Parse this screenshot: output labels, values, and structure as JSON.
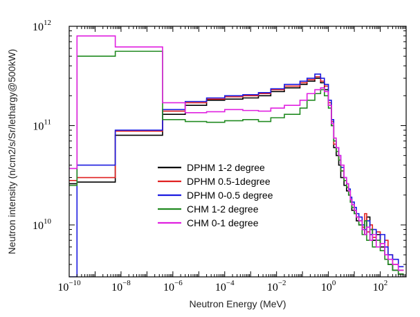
{
  "chart_data": {
    "type": "line",
    "step": true,
    "xscale": "log",
    "yscale": "log",
    "xlabel": "Neutron Energy (MeV)",
    "ylabel": "Neutron intensity (n/cm2/s/Sr/lethargy@500kW)",
    "xlim": [
      1e-10,
      1000
    ],
    "ylim": [
      3000000000.0,
      1000000000000.0
    ],
    "grid": false,
    "legend_position": "center",
    "x_ticks": [
      {
        "value": 1e-10,
        "base": "10",
        "exp": "−10"
      },
      {
        "value": 1e-08,
        "base": "10",
        "exp": "−8"
      },
      {
        "value": 1e-06,
        "base": "10",
        "exp": "−6"
      },
      {
        "value": 0.0001,
        "base": "10",
        "exp": "−4"
      },
      {
        "value": 0.01,
        "base": "10",
        "exp": "−2"
      },
      {
        "value": 1,
        "base": "10",
        "exp": "0"
      },
      {
        "value": 100,
        "base": "10",
        "exp": "2"
      }
    ],
    "y_ticks": [
      {
        "value": 10000000000.0,
        "base": "10",
        "exp": "10"
      },
      {
        "value": 100000000000.0,
        "base": "10",
        "exp": "11"
      },
      {
        "value": 1000000000000.0,
        "base": "10",
        "exp": "12"
      }
    ],
    "series": [
      {
        "name": "DPHM 1-2 degree",
        "color": "#000000",
        "x": [
          1e-10,
          2e-10,
          6e-09,
          4e-07,
          3e-06,
          2e-05,
          0.0001,
          0.0005,
          0.002,
          0.006,
          0.02,
          0.08,
          0.15,
          0.3,
          0.5,
          0.7,
          1,
          1.3,
          1.6,
          2,
          2.5,
          3,
          4,
          5,
          6,
          7,
          8,
          10,
          12,
          15,
          20,
          25,
          30,
          40,
          50,
          70,
          100,
          150,
          200,
          300,
          500
        ],
        "y": [
          26000000000.0,
          27000000000.0,
          80000000000.0,
          130000000000.0,
          160000000000.0,
          180000000000.0,
          185000000000.0,
          190000000000.0,
          200000000000.0,
          220000000000.0,
          240000000000.0,
          260000000000.0,
          280000000000.0,
          300000000000.0,
          270000000000.0,
          230000000000.0,
          160000000000.0,
          100000000000.0,
          60000000000.0,
          50000000000.0,
          40000000000.0,
          30000000000.0,
          25000000000.0,
          22000000000.0,
          20000000000.0,
          17000000000.0,
          14000000000.0,
          13000000000.0,
          11000000000.0,
          10000000000.0,
          9000000000.0,
          8000000000.0,
          12000000000.0,
          9000000000.0,
          7000000000.0,
          8000000000.0,
          6000000000.0,
          5000000000.0,
          4000000000.0,
          3500000000.0,
          3200000000.0
        ]
      },
      {
        "name": "DPHM 0.5-1degree",
        "color": "#e02020",
        "x": [
          1e-10,
          2e-10,
          6e-09,
          4e-07,
          3e-06,
          2e-05,
          0.0001,
          0.0005,
          0.002,
          0.006,
          0.02,
          0.08,
          0.15,
          0.3,
          0.5,
          0.7,
          1,
          1.3,
          1.6,
          2,
          2.5,
          3,
          4,
          5,
          6,
          7,
          8,
          10,
          12,
          15,
          20,
          25,
          30,
          40,
          50,
          70,
          100,
          150,
          200,
          300,
          500
        ],
        "y": [
          28000000000.0,
          30000000000.0,
          88000000000.0,
          140000000000.0,
          170000000000.0,
          185000000000.0,
          195000000000.0,
          200000000000.0,
          210000000000.0,
          230000000000.0,
          250000000000.0,
          270000000000.0,
          290000000000.0,
          310000000000.0,
          280000000000.0,
          250000000000.0,
          170000000000.0,
          110000000000.0,
          65000000000.0,
          55000000000.0,
          45000000000.0,
          35000000000.0,
          28000000000.0,
          24000000000.0,
          22000000000.0,
          18000000000.0,
          16000000000.0,
          14000000000.0,
          12000000000.0,
          11000000000.0,
          9500000000.0,
          13000000000.0,
          8500000000.0,
          10000000000.0,
          7500000000.0,
          8500000000.0,
          6500000000.0,
          7000000000.0,
          5000000000.0,
          4000000000.0,
          3500000000.0
        ]
      },
      {
        "name": "DPHM 0-0.5 degree",
        "color": "#1a1ae0",
        "x": [
          1e-10,
          2e-10,
          6e-09,
          4e-07,
          3e-06,
          2e-05,
          0.0001,
          0.0005,
          0.002,
          0.006,
          0.02,
          0.08,
          0.15,
          0.3,
          0.5,
          0.7,
          1,
          1.3,
          1.6,
          2,
          2.5,
          3,
          4,
          5,
          6,
          7,
          8,
          10,
          12,
          15,
          20,
          25,
          30,
          40,
          50,
          70,
          100,
          150,
          200,
          300,
          500
        ],
        "y": [
          3000000000.0,
          40000000000.0,
          90000000000.0,
          145000000000.0,
          175000000000.0,
          190000000000.0,
          200000000000.0,
          205000000000.0,
          215000000000.0,
          235000000000.0,
          260000000000.0,
          280000000000.0,
          300000000000.0,
          330000000000.0,
          300000000000.0,
          260000000000.0,
          180000000000.0,
          115000000000.0,
          70000000000.0,
          60000000000.0,
          50000000000.0,
          38000000000.0,
          30000000000.0,
          26000000000.0,
          23000000000.0,
          19000000000.0,
          17000000000.0,
          15000000000.0,
          13000000000.0,
          12000000000.0,
          10000000000.0,
          9000000000.0,
          11000000000.0,
          8000000000.0,
          9000000000.0,
          7000000000.0,
          8000000000.0,
          6000000000.0,
          5000000000.0,
          4500000000.0,
          3800000000.0
        ]
      },
      {
        "name": "CHM 1-2 degree",
        "color": "#208a20",
        "x": [
          1e-10,
          2e-10,
          6e-09,
          4e-07,
          3e-06,
          2e-05,
          0.0001,
          0.0005,
          0.002,
          0.006,
          0.02,
          0.08,
          0.15,
          0.3,
          0.5,
          0.7,
          1,
          1.3,
          1.6,
          2,
          2.5,
          3,
          4,
          5,
          6,
          7,
          8,
          10,
          12,
          15,
          20,
          25,
          30,
          40,
          50,
          70,
          100,
          150,
          200,
          300,
          500
        ],
        "y": [
          25000000000.0,
          500000000000.0,
          560000000000.0,
          115000000000.0,
          110000000000.0,
          108000000000.0,
          112000000000.0,
          115000000000.0,
          110000000000.0,
          120000000000.0,
          130000000000.0,
          150000000000.0,
          180000000000.0,
          210000000000.0,
          230000000000.0,
          200000000000.0,
          150000000000.0,
          100000000000.0,
          70000000000.0,
          55000000000.0,
          45000000000.0,
          35000000000.0,
          28000000000.0,
          24000000000.0,
          20000000000.0,
          17000000000.0,
          15000000000.0,
          13000000000.0,
          12000000000.0,
          10000000000.0,
          8000000000.0,
          11000000000.0,
          7000000000.0,
          9000000000.0,
          6000000000.0,
          7000000000.0,
          5500000000.0,
          4500000000.0,
          4000000000.0,
          3500000000.0,
          3200000000.0
        ]
      },
      {
        "name": "CHM 0-1 degree",
        "color": "#e020e0",
        "x": [
          1e-10,
          2e-10,
          6e-09,
          4e-07,
          3e-06,
          2e-05,
          0.0001,
          0.0005,
          0.002,
          0.006,
          0.02,
          0.08,
          0.15,
          0.3,
          0.5,
          0.7,
          1,
          1.3,
          1.6,
          2,
          2.5,
          3,
          4,
          5,
          6,
          7,
          8,
          10,
          12,
          15,
          20,
          25,
          30,
          40,
          50,
          70,
          100,
          150,
          200,
          300,
          500
        ],
        "y": [
          37000000000.0,
          800000000000.0,
          620000000000.0,
          170000000000.0,
          135000000000.0,
          138000000000.0,
          145000000000.0,
          142000000000.0,
          140000000000.0,
          150000000000.0,
          160000000000.0,
          180000000000.0,
          210000000000.0,
          230000000000.0,
          240000000000.0,
          220000000000.0,
          160000000000.0,
          105000000000.0,
          75000000000.0,
          60000000000.0,
          50000000000.0,
          40000000000.0,
          30000000000.0,
          26000000000.0,
          22000000000.0,
          18000000000.0,
          16000000000.0,
          14000000000.0,
          12000000000.0,
          11000000000.0,
          9000000000.0,
          8000000000.0,
          9500000000.0,
          7000000000.0,
          8000000000.0,
          6000000000.0,
          6500000000.0,
          5000000000.0,
          4500000000.0,
          4000000000.0,
          3500000000.0
        ]
      }
    ]
  }
}
